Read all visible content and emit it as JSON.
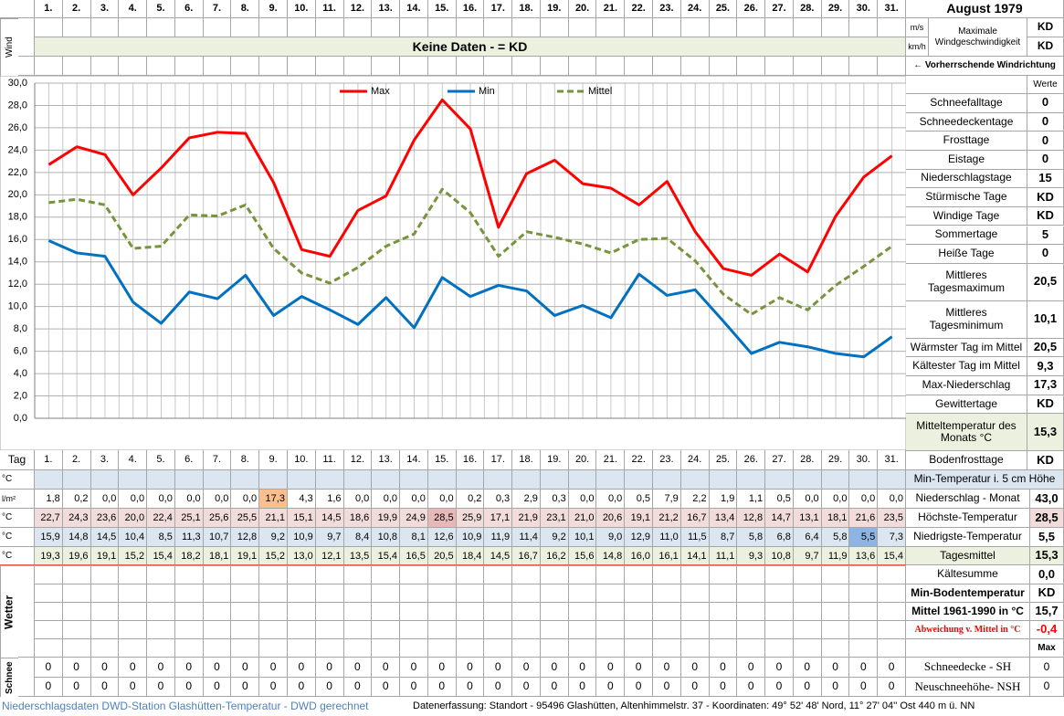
{
  "header": {
    "month": "August 1979",
    "wind_label": "Wind",
    "ms": "m/s",
    "kmh": "km/h",
    "max_wind_label": "Maximale Windgeschwindigkeit",
    "max_wind_ms": "KD",
    "max_wind_kmh": "KD",
    "no_data": "Keine Daten -  = KD",
    "wind_direction": "← Vorherrschende Windrichtung",
    "werte": "Werte"
  },
  "chart_data": {
    "type": "line",
    "categories": [
      "1.",
      "2.",
      "3.",
      "4.",
      "5.",
      "6.",
      "7.",
      "8.",
      "9.",
      "10.",
      "11.",
      "12.",
      "13.",
      "14.",
      "15.",
      "16.",
      "17.",
      "18.",
      "19.",
      "20.",
      "21.",
      "22.",
      "23.",
      "24.",
      "25.",
      "26.",
      "27.",
      "28.",
      "29.",
      "30.",
      "31."
    ],
    "series": [
      {
        "name": "Max",
        "color": "#ff0000",
        "dash": false,
        "values": [
          22.7,
          24.3,
          23.6,
          20.0,
          22.4,
          25.1,
          25.6,
          25.5,
          21.1,
          15.1,
          14.5,
          18.6,
          19.9,
          24.9,
          28.5,
          25.9,
          17.1,
          21.9,
          23.1,
          21.0,
          20.6,
          19.1,
          21.2,
          16.7,
          13.4,
          12.8,
          14.7,
          13.1,
          18.1,
          21.6,
          23.5
        ],
        "value_labels": [
          "22,7",
          "24,3",
          "23,6",
          "20,0",
          "22,4",
          "25,1",
          "25,6",
          "25,5",
          "21,1",
          "15,1",
          "14,5",
          "18,6",
          "19,9",
          "24,9",
          "28,5",
          "25,9",
          "17,1",
          "21,9",
          "23,1",
          "21,0",
          "20,6",
          "19,1",
          "21,2",
          "16,7",
          "13,4",
          "12,8",
          "14,7",
          "13,1",
          "18,1",
          "21,6",
          "23,5"
        ]
      },
      {
        "name": "Min",
        "color": "#0070c0",
        "dash": false,
        "values": [
          15.9,
          14.8,
          14.5,
          10.4,
          8.5,
          11.3,
          10.7,
          12.8,
          9.2,
          10.9,
          9.7,
          8.4,
          10.8,
          8.1,
          12.6,
          10.9,
          11.9,
          11.4,
          9.2,
          10.1,
          9.0,
          12.9,
          11.0,
          11.5,
          8.7,
          5.8,
          6.8,
          6.4,
          5.8,
          5.5,
          7.3
        ],
        "value_labels": [
          "15,9",
          "14,8",
          "14,5",
          "10,4",
          "8,5",
          "11,3",
          "10,7",
          "12,8",
          "9,2",
          "10,9",
          "9,7",
          "8,4",
          "10,8",
          "8,1",
          "12,6",
          "10,9",
          "11,9",
          "11,4",
          "9,2",
          "10,1",
          "9,0",
          "12,9",
          "11,0",
          "11,5",
          "8,7",
          "5,8",
          "6,8",
          "6,4",
          "5,8",
          "5,5",
          "7,3"
        ]
      },
      {
        "name": "Mittel",
        "color": "#77933c",
        "dash": true,
        "values": [
          19.3,
          19.6,
          19.1,
          15.2,
          15.4,
          18.2,
          18.1,
          19.1,
          15.2,
          13.0,
          12.1,
          13.5,
          15.4,
          16.5,
          20.5,
          18.4,
          14.5,
          16.7,
          16.2,
          15.6,
          14.8,
          16.0,
          16.1,
          14.1,
          11.1,
          9.3,
          10.8,
          9.7,
          11.9,
          13.6,
          15.4
        ],
        "value_labels": [
          "19,3",
          "19,6",
          "19,1",
          "15,2",
          "15,4",
          "18,2",
          "18,1",
          "19,1",
          "15,2",
          "13,0",
          "12,1",
          "13,5",
          "15,4",
          "16,5",
          "20,5",
          "18,4",
          "14,5",
          "16,7",
          "16,2",
          "15,6",
          "14,8",
          "16,0",
          "16,1",
          "14,1",
          "11,1",
          "9,3",
          "10,8",
          "9,7",
          "11,9",
          "13,6",
          "15,4"
        ]
      }
    ],
    "ylim": [
      0,
      30
    ],
    "yticks": [
      {
        "value": 0,
        "label": "0,0"
      },
      {
        "value": 2,
        "label": "2,0"
      },
      {
        "value": 4,
        "label": "4,0"
      },
      {
        "value": 6,
        "label": "6,0"
      },
      {
        "value": 8,
        "label": "8,0"
      },
      {
        "value": 10,
        "label": "10,0"
      },
      {
        "value": 12,
        "label": "12,0"
      },
      {
        "value": 14,
        "label": "14,0"
      },
      {
        "value": 16,
        "label": "16,0"
      },
      {
        "value": 18,
        "label": "18,0"
      },
      {
        "value": 20,
        "label": "20,0"
      },
      {
        "value": 22,
        "label": "22,0"
      },
      {
        "value": 24,
        "label": "24,0"
      },
      {
        "value": 26,
        "label": "26,0"
      },
      {
        "value": 28,
        "label": "28,0"
      },
      {
        "value": 30,
        "label": "30,0"
      }
    ],
    "grid": true
  },
  "stats": [
    {
      "label": "Schneefalltage",
      "value": 0
    },
    {
      "label": "Schneedeckentage",
      "value": 0
    },
    {
      "label": "Frosttage",
      "value": 0
    },
    {
      "label": "Eistage",
      "value": 0
    },
    {
      "label": "Niederschlagstage",
      "value": 15
    },
    {
      "label": "Stürmische Tage",
      "value": "KD"
    },
    {
      "label": "Windige Tage",
      "value": "KD"
    },
    {
      "label": "Sommertage",
      "value": 5
    },
    {
      "label": "Heiße Tage",
      "value": 0
    },
    {
      "label": "Mittleres Tagesmaximum",
      "value": "20,5"
    },
    {
      "label": "Mittleres Tagesminimum",
      "value": "10,1"
    },
    {
      "label": "Wärmster Tag im Mittel",
      "value": "20,5"
    },
    {
      "label": "Kältester Tag im Mittel",
      "value": "9,3"
    },
    {
      "label": "Max-Niederschlag",
      "value": "17,3"
    },
    {
      "label": "Gewittertage",
      "value": "KD"
    },
    {
      "label": "Mitteltemperatur des Monats °C",
      "value": "15,3"
    },
    {
      "label": "Bodenfrosttage",
      "value": "KD"
    }
  ],
  "table": {
    "tag_label": "Tag",
    "unit_c": "°C",
    "unit_precip": "l/m²",
    "ground_min_label": "Min-Temperatur i. 5 cm Höhe",
    "precip": {
      "values": [
        1.8,
        0.2,
        0.0,
        0.0,
        0.0,
        0.0,
        0.0,
        0.0,
        17.3,
        4.3,
        1.6,
        0.0,
        0.0,
        0.0,
        0.0,
        0.2,
        0.3,
        2.9,
        0.3,
        0.0,
        0.0,
        0.5,
        7.9,
        2.2,
        1.9,
        1.1,
        0.5,
        0.0,
        0.0,
        0.0,
        0.0
      ],
      "value_labels": [
        "1,8",
        "0,2",
        "0,0",
        "0,0",
        "0,0",
        "0,0",
        "0,0",
        "0,0",
        "17,3",
        "4,3",
        "1,6",
        "0,0",
        "0,0",
        "0,0",
        "0,0",
        "0,2",
        "0,3",
        "2,9",
        "0,3",
        "0,0",
        "0,0",
        "0,5",
        "7,9",
        "2,2",
        "1,9",
        "1,1",
        "0,5",
        "0,0",
        "0,0",
        "0,0",
        "0,0"
      ]
    },
    "summary": [
      {
        "label": "Niederschlag - Monat",
        "value": "43,0"
      },
      {
        "label": "Höchste-Temperatur",
        "value": "28,5"
      },
      {
        "label": "Niedrigste-Temperatur",
        "value": "5,5"
      },
      {
        "label": "Tagesmittel",
        "value": "15,3"
      },
      {
        "label": "Kältesumme",
        "value": "0,0"
      },
      {
        "label": "Min-Bodentemperatur",
        "value": "KD"
      },
      {
        "label": "Mittel 1961-1990 in °C",
        "value": "15,7"
      },
      {
        "label": "Abweichung v. Mittel in °C",
        "value": "-0,4"
      }
    ],
    "wetter_label": "Wetter",
    "schnee_label": "Schnee",
    "max_label": "Max",
    "snow_rows": [
      {
        "label": "Schneedecke -  SH",
        "values": [
          0,
          0,
          0,
          0,
          0,
          0,
          0,
          0,
          0,
          0,
          0,
          0,
          0,
          0,
          0,
          0,
          0,
          0,
          0,
          0,
          0,
          0,
          0,
          0,
          0,
          0,
          0,
          0,
          0,
          0,
          0
        ],
        "total": 0
      },
      {
        "label": "Neuschneehöhe- NSH",
        "values": [
          0,
          0,
          0,
          0,
          0,
          0,
          0,
          0,
          0,
          0,
          0,
          0,
          0,
          0,
          0,
          0,
          0,
          0,
          0,
          0,
          0,
          0,
          0,
          0,
          0,
          0,
          0,
          0,
          0,
          0,
          0
        ],
        "total": 0
      }
    ]
  },
  "footer": {
    "left": "Niederschlagsdaten DWD-Station Glashütten-Temperatur -  DWD gerechnet",
    "right": "Datenerfassung: Standort -  95496 Glashütten, Altenhimmelstr. 37 - Koordinaten: 49° 52' 48' Nord,  11° 27' 04'' Ost   440 m ü. NN"
  }
}
